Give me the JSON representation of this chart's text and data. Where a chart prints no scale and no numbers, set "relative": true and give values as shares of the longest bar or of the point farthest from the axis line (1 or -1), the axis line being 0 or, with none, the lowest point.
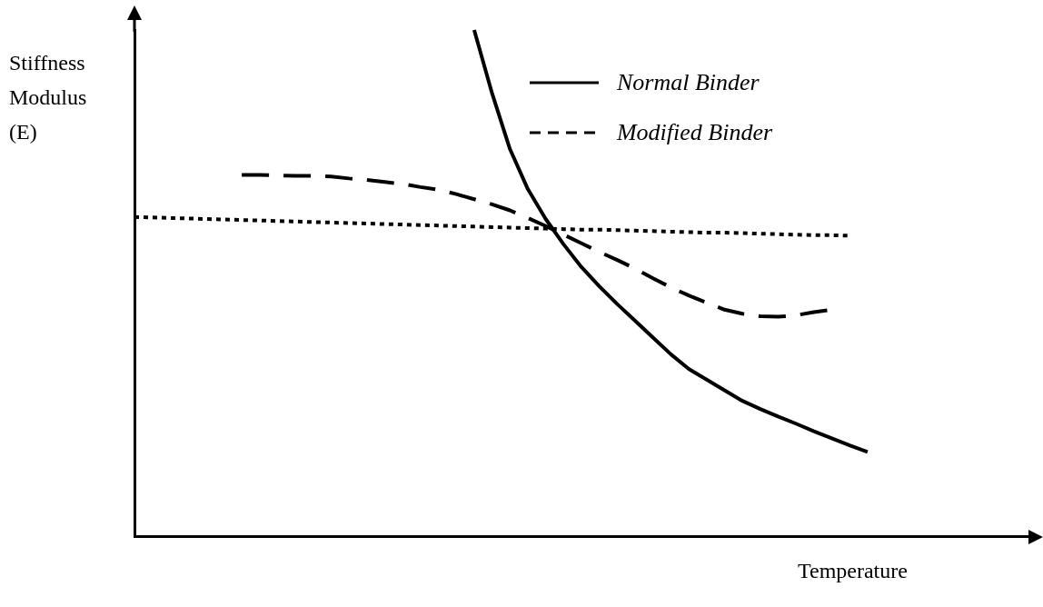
{
  "chart_data": {
    "type": "line",
    "xlabel": "Temperature",
    "ylabel": "Stiffness Modulus (E)",
    "relative": true,
    "grid": false,
    "legend": "top right",
    "categories": [
      null,
      null,
      null,
      null,
      null,
      null,
      null,
      null,
      null,
      null,
      null,
      null,
      null,
      null,
      null,
      null,
      null,
      null,
      null,
      null,
      null,
      null,
      null,
      null,
      null,
      null,
      null,
      null,
      null,
      null,
      null,
      null,
      null,
      null,
      null,
      null,
      null,
      null,
      null,
      null,
      null,
      null,
      null,
      null,
      null,
      null,
      null,
      null,
      null,
      null,
      null
    ],
    "series": [
      {
        "name": "Normal Binder",
        "color": "#000000",
        "line_style": "solid",
        "values": [
          null,
          null,
          null,
          null,
          null,
          null,
          null,
          null,
          null,
          null,
          null,
          null,
          null,
          null,
          null,
          null,
          null,
          null,
          null,
          1.0,
          0.875,
          0.765,
          0.686,
          0.627,
          0.577,
          0.532,
          0.494,
          0.459,
          0.426,
          0.393,
          0.36,
          0.331,
          0.31,
          0.289,
          0.268,
          0.252,
          0.237,
          0.223,
          0.208,
          0.194,
          0.18,
          0.167,
          null,
          null,
          null,
          null,
          null,
          null,
          null,
          null,
          null
        ]
      },
      {
        "name": "Modified Binder",
        "color": "#000000",
        "line_style": "dashed",
        "values": [
          null,
          null,
          null,
          null,
          null,
          null,
          0.714,
          0.714,
          0.713,
          0.712,
          0.712,
          0.711,
          0.707,
          0.704,
          0.7,
          0.696,
          0.69,
          0.685,
          0.676,
          0.666,
          0.656,
          0.644,
          0.629,
          0.613,
          0.596,
          0.579,
          0.562,
          0.546,
          0.529,
          0.51,
          0.492,
          0.476,
          0.462,
          0.448,
          0.44,
          0.435,
          0.434,
          0.437,
          0.443,
          0.448,
          null,
          null,
          null,
          null,
          null,
          null,
          null,
          null,
          null,
          null,
          null
        ]
      },
      {
        "color": "#000000",
        "line_style": "dotted",
        "values": [
          0.631,
          0.63,
          0.629,
          0.628,
          0.627,
          0.626,
          0.625,
          0.624,
          0.623,
          0.622,
          0.621,
          0.62,
          0.619,
          0.618,
          0.617,
          0.616,
          0.615,
          0.614,
          0.613,
          0.612,
          0.611,
          0.61,
          0.609,
          0.608,
          0.607,
          0.606,
          0.606,
          0.605,
          0.604,
          0.603,
          0.602,
          0.601,
          0.6,
          0.6,
          0.599,
          0.598,
          0.597,
          0.596,
          0.595,
          0.595,
          0.594,
          null,
          null,
          null,
          null,
          null,
          null,
          null,
          null,
          null,
          null
        ]
      }
    ]
  }
}
